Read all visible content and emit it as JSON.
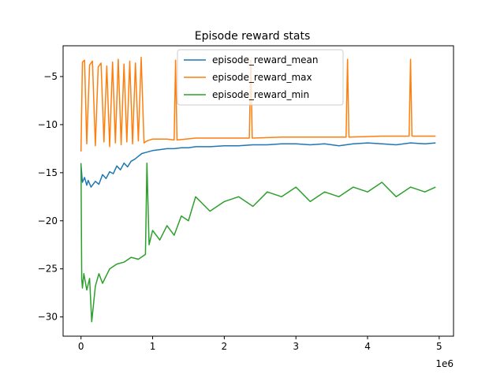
{
  "chart_data": {
    "type": "line",
    "title": "Episode reward stats",
    "xlabel": "",
    "ylabel": "",
    "x_offset_label": "1e6",
    "xlim": [
      -0.25,
      5.2
    ],
    "ylim": [
      -32,
      -1.8
    ],
    "x_ticks": [
      0,
      1,
      2,
      3,
      4,
      5
    ],
    "x_tick_labels": [
      "0",
      "1",
      "2",
      "3",
      "4",
      "5"
    ],
    "y_ticks": [
      -30,
      -25,
      -20,
      -15,
      -10,
      -5
    ],
    "y_tick_labels": [
      "−30",
      "−25",
      "−20",
      "−15",
      "−10",
      "−5"
    ],
    "grid": false,
    "legend_position": "upper center",
    "series": [
      {
        "name": "episode_reward_mean",
        "color": "#1f77b4",
        "x": [
          0,
          0.02,
          0.05,
          0.08,
          0.1,
          0.14,
          0.2,
          0.25,
          0.3,
          0.35,
          0.4,
          0.45,
          0.5,
          0.55,
          0.6,
          0.65,
          0.7,
          0.75,
          0.8,
          0.85,
          0.9,
          1.0,
          1.1,
          1.2,
          1.3,
          1.4,
          1.5,
          1.6,
          1.8,
          2.0,
          2.2,
          2.4,
          2.6,
          2.8,
          3.0,
          3.2,
          3.4,
          3.6,
          3.8,
          4.0,
          4.2,
          4.4,
          4.6,
          4.8,
          4.95
        ],
        "y": [
          -14.2,
          -16.0,
          -15.5,
          -16.3,
          -15.8,
          -16.5,
          -15.9,
          -16.2,
          -15.2,
          -15.6,
          -14.9,
          -15.1,
          -14.3,
          -14.7,
          -14.0,
          -14.4,
          -13.8,
          -13.6,
          -13.3,
          -13.0,
          -12.9,
          -12.7,
          -12.6,
          -12.5,
          -12.5,
          -12.4,
          -12.4,
          -12.3,
          -12.3,
          -12.2,
          -12.2,
          -12.1,
          -12.1,
          -12.0,
          -12.0,
          -12.1,
          -12.0,
          -12.2,
          -12.0,
          -11.9,
          -12.0,
          -12.1,
          -11.9,
          -12.0,
          -11.9
        ]
      },
      {
        "name": "episode_reward_max",
        "color": "#ff7f0e",
        "x": [
          0,
          0.02,
          0.05,
          0.08,
          0.12,
          0.16,
          0.2,
          0.24,
          0.28,
          0.32,
          0.36,
          0.4,
          0.44,
          0.48,
          0.52,
          0.56,
          0.6,
          0.64,
          0.68,
          0.72,
          0.76,
          0.8,
          0.84,
          0.88,
          0.92,
          1.0,
          1.2,
          1.3,
          1.32,
          1.34,
          1.6,
          2.0,
          2.35,
          2.37,
          2.39,
          2.8,
          3.2,
          3.7,
          3.72,
          3.74,
          4.2,
          4.58,
          4.6,
          4.62,
          4.95
        ],
        "y": [
          -12.8,
          -3.5,
          -3.3,
          -12.0,
          -3.8,
          -3.4,
          -12.2,
          -4.0,
          -3.6,
          -11.8,
          -3.9,
          -12.3,
          -3.5,
          -11.9,
          -3.2,
          -12.1,
          -3.7,
          -11.8,
          -3.4,
          -12.0,
          -3.6,
          -11.7,
          -3.0,
          -11.9,
          -11.7,
          -11.5,
          -11.5,
          -11.6,
          -3.3,
          -11.6,
          -11.4,
          -11.4,
          -11.4,
          -3.3,
          -11.4,
          -11.3,
          -11.3,
          -11.3,
          -3.2,
          -11.3,
          -11.2,
          -11.2,
          -3.2,
          -11.2,
          -11.2
        ]
      },
      {
        "name": "episode_reward_min",
        "color": "#2ca02c",
        "x": [
          0,
          0.01,
          0.02,
          0.04,
          0.08,
          0.12,
          0.15,
          0.2,
          0.25,
          0.3,
          0.4,
          0.5,
          0.6,
          0.7,
          0.8,
          0.9,
          0.92,
          0.95,
          1.0,
          1.1,
          1.2,
          1.3,
          1.4,
          1.5,
          1.6,
          1.8,
          2.0,
          2.2,
          2.4,
          2.6,
          2.8,
          3.0,
          3.2,
          3.4,
          3.6,
          3.8,
          4.0,
          4.2,
          4.4,
          4.6,
          4.8,
          4.95
        ],
        "y": [
          -14.0,
          -26.0,
          -27.0,
          -25.5,
          -27.2,
          -26.0,
          -30.5,
          -26.8,
          -25.5,
          -26.5,
          -25.0,
          -24.5,
          -24.3,
          -23.8,
          -24.0,
          -23.5,
          -14.0,
          -22.5,
          -21.0,
          -22.0,
          -20.5,
          -21.5,
          -19.5,
          -20.0,
          -17.5,
          -19.0,
          -18.0,
          -17.5,
          -18.5,
          -17.0,
          -17.5,
          -16.5,
          -18.0,
          -17.0,
          -17.5,
          -16.5,
          -17.0,
          -16.0,
          -17.5,
          -16.5,
          -17.0,
          -16.5
        ]
      }
    ]
  }
}
